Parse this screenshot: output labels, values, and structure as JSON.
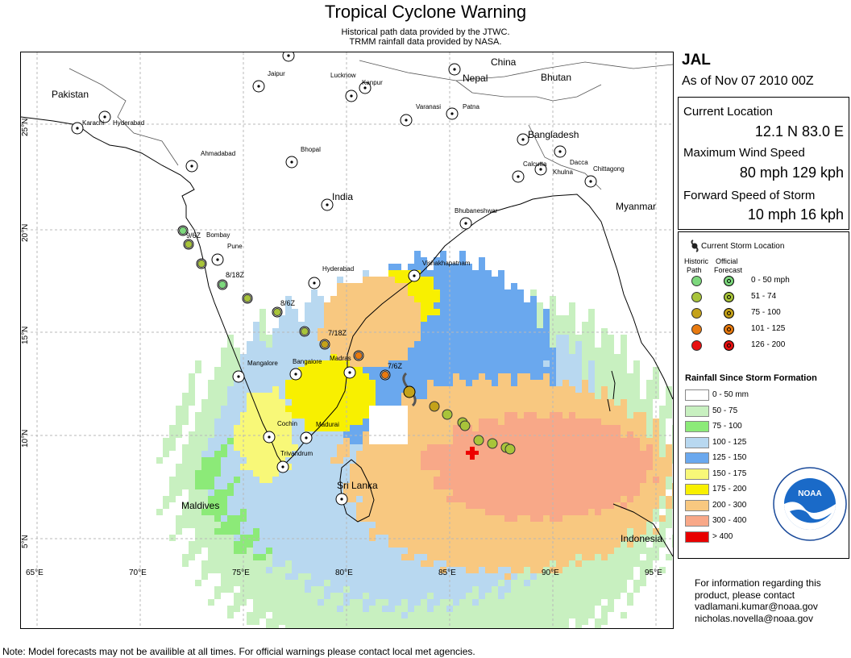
{
  "header": {
    "title": "Tropical Cyclone Warning",
    "subtitle_1": "Historical path data provided by the JTWC.",
    "subtitle_2": "TRMM rainfall data provided by NASA."
  },
  "storm": {
    "name": "JAL",
    "as_of": "As of Nov 07 2010 00Z",
    "current_location_label": "Current Location",
    "current_location": "12.1 N  83.0 E",
    "max_wind_label": "Maximum Wind Speed",
    "max_wind": "80 mph 129 kph",
    "forward_speed_label": "Forward Speed of Storm",
    "forward_speed": "10 mph  16 kph"
  },
  "legend": {
    "current_storm_label": "Current Storm Location",
    "historic_path_label_1": "Historic",
    "historic_path_label_2": "Path",
    "official_forecast_label_1": "Official",
    "official_forecast_label_2": "Forecast",
    "wind_categories": [
      {
        "label": "0 - 50 mph",
        "color": "#7dd87d"
      },
      {
        "label": "51 - 74",
        "color": "#a8c43a"
      },
      {
        "label": "75 - 100",
        "color": "#c4a21a"
      },
      {
        "label": "101 - 125",
        "color": "#e87a10"
      },
      {
        "label": "126 - 200",
        "color": "#e81010"
      }
    ],
    "rainfall_title": "Rainfall Since Storm Formation",
    "rainfall_categories": [
      {
        "label": "0 - 50 mm",
        "color": "#ffffff"
      },
      {
        "label": "50 - 75",
        "color": "#c8f0c0"
      },
      {
        "label": "75 - 100",
        "color": "#8cea78"
      },
      {
        "label": "100 - 125",
        "color": "#b8d8f0"
      },
      {
        "label": "125 - 150",
        "color": "#6aa8ee"
      },
      {
        "label": "150 - 175",
        "color": "#f8f878"
      },
      {
        "label": "175 - 200",
        "color": "#f8f000"
      },
      {
        "label": "200 - 300",
        "color": "#f8c880"
      },
      {
        "label": "300 - 400",
        "color": "#f8a888"
      },
      {
        "label": "> 400",
        "color": "#e80000"
      }
    ]
  },
  "map": {
    "lon_ticks": [
      "65°E",
      "70°E",
      "75°E",
      "80°E",
      "85°E",
      "90°E",
      "95°E"
    ],
    "lat_ticks": [
      "25°N",
      "20°N",
      "15°N",
      "10°N",
      "5°N"
    ],
    "countries": [
      "Pakistan",
      "China",
      "Nepal",
      "Bhutan",
      "Bangladesh",
      "India",
      "Myanmar",
      "Sri Lanka",
      "Maldives",
      "Indonesia"
    ],
    "cities": [
      "Karachi",
      "Hyderabad",
      "Jaipur",
      "Lucknow",
      "Kanpur",
      "Varanasi",
      "Patna",
      "Ahmadabad",
      "Bhopal",
      "Calcutta",
      "Dacca",
      "Khulna",
      "Chittagong",
      "Bhubaneshwar",
      "Bombay",
      "Pune",
      "Hyderabad",
      "Vishakhapatnam",
      "Mangalore",
      "Bangalore",
      "Madras",
      "Cochin",
      "Madurai",
      "Trivandrum"
    ],
    "track_labels": [
      "9/6Z",
      "8/18Z",
      "8/6Z",
      "7/18Z",
      "7/6Z"
    ]
  },
  "contact": {
    "line1": "For information regarding this",
    "line2": "product, please contact",
    "line3": "vadlamani.kumar@noaa.gov",
    "line4": "nicholas.novella@noaa.gov"
  },
  "footer": {
    "note": "Note: Model forecasts may not be availible at all times.  For official warnings please contact local met agencies."
  },
  "logo": {
    "text": "NOAA"
  }
}
